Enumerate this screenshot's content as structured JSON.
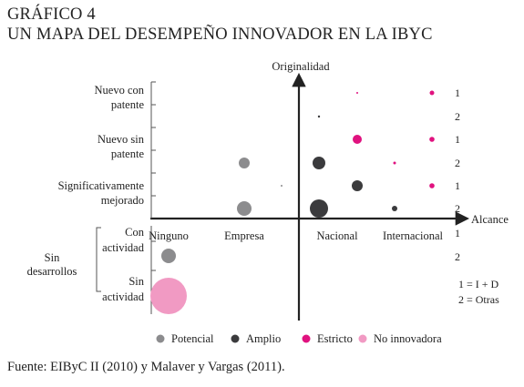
{
  "header": {
    "title": "GRÁFICO 4",
    "subtitle": "UN MAPA DEL DESEMPEÑO INNOVADOR EN LA IBYC"
  },
  "source": "Fuente: EIByC II (2010) y Malaver y Vargas (2011).",
  "colors": {
    "Potencial": "#8c8c8e",
    "Amplio": "#3b3b3d",
    "Estricto": "#e0127f",
    "No innovadora": "#f19ac3"
  },
  "chart_data": {
    "type": "scatter",
    "title": "GRÁFICO 4",
    "subtitle": "UN MAPA DEL DESEMPEÑO INNOVADOR EN LA IBYC",
    "x_axis_label": "Alcance",
    "y_axis_label": "Originalidad",
    "x_categories": [
      "Ninguno",
      "Empresa",
      "Nacional",
      "Internacional"
    ],
    "y_categories_upper": [
      {
        "label": [
          "Nuevo con",
          "patente"
        ],
        "rows": [
          "1",
          "2"
        ]
      },
      {
        "label": [
          "Nuevo sin",
          "patente"
        ],
        "rows": [
          "1",
          "2"
        ]
      },
      {
        "label": [
          "Significativamente",
          "mejorado"
        ],
        "rows": [
          "1",
          "2"
        ]
      }
    ],
    "y_categories_lower": {
      "group_label": [
        "Sin",
        "desarrollos"
      ],
      "items": [
        {
          "label": [
            "Con",
            "actividad"
          ],
          "rows": [
            "1",
            "2"
          ]
        },
        {
          "label": [
            "Sin",
            "actividad"
          ],
          "rows": []
        }
      ]
    },
    "side_numbers": [
      "1",
      "2",
      "1",
      "2",
      "1",
      "2",
      "1",
      "2"
    ],
    "legend_note": [
      "1 = I + D",
      "2 = Otras"
    ],
    "legend": [
      "Potencial",
      "Amplio",
      "Estricto",
      "No innovadora"
    ],
    "points": [
      {
        "x": "Internacional",
        "y": "Nuevo con patente 1",
        "type": "Estricto",
        "size": 2.5
      },
      {
        "x": "Nacional",
        "y": "Nuevo con patente 1",
        "type": "Estricto",
        "size": 1
      },
      {
        "x": "Nacional",
        "y": "Nuevo con patente 2",
        "type": "Amplio",
        "size": 1.2
      },
      {
        "x": "Nacional",
        "y": "Nuevo sin patente 1",
        "type": "Estricto",
        "size": 5
      },
      {
        "x": "Internacional",
        "y": "Nuevo sin patente 1",
        "type": "Estricto",
        "size": 2.8
      },
      {
        "x": "Empresa",
        "y": "Nuevo sin patente 2",
        "type": "Potencial",
        "size": 6
      },
      {
        "x": "Nacional",
        "y": "Nuevo sin patente 2",
        "type": "Amplio",
        "size": 7
      },
      {
        "x": "Internacional",
        "y": "Nuevo sin patente 2",
        "type": "Estricto",
        "size": 1.5
      },
      {
        "x": "Empresa",
        "y": "Significativamente mejorado 1",
        "type": "Potencial",
        "size": 1
      },
      {
        "x": "Nacional",
        "y": "Significativamente mejorado 1",
        "type": "Amplio",
        "size": 6
      },
      {
        "x": "Internacional",
        "y": "Significativamente mejorado 1",
        "type": "Estricto",
        "size": 2.8
      },
      {
        "x": "Empresa",
        "y": "Significativamente mejorado 2",
        "type": "Potencial",
        "size": 8
      },
      {
        "x": "Nacional",
        "y": "Significativamente mejorado 2",
        "type": "Amplio",
        "size": 10
      },
      {
        "x": "Internacional",
        "y": "Significativamente mejorado 2",
        "type": "Amplio",
        "size": 3
      },
      {
        "x": "Ninguno",
        "y": "Con actividad 2",
        "type": "Potencial",
        "size": 8
      },
      {
        "x": "Ninguno",
        "y": "Sin actividad",
        "type": "No innovadora",
        "size": 20
      }
    ]
  }
}
